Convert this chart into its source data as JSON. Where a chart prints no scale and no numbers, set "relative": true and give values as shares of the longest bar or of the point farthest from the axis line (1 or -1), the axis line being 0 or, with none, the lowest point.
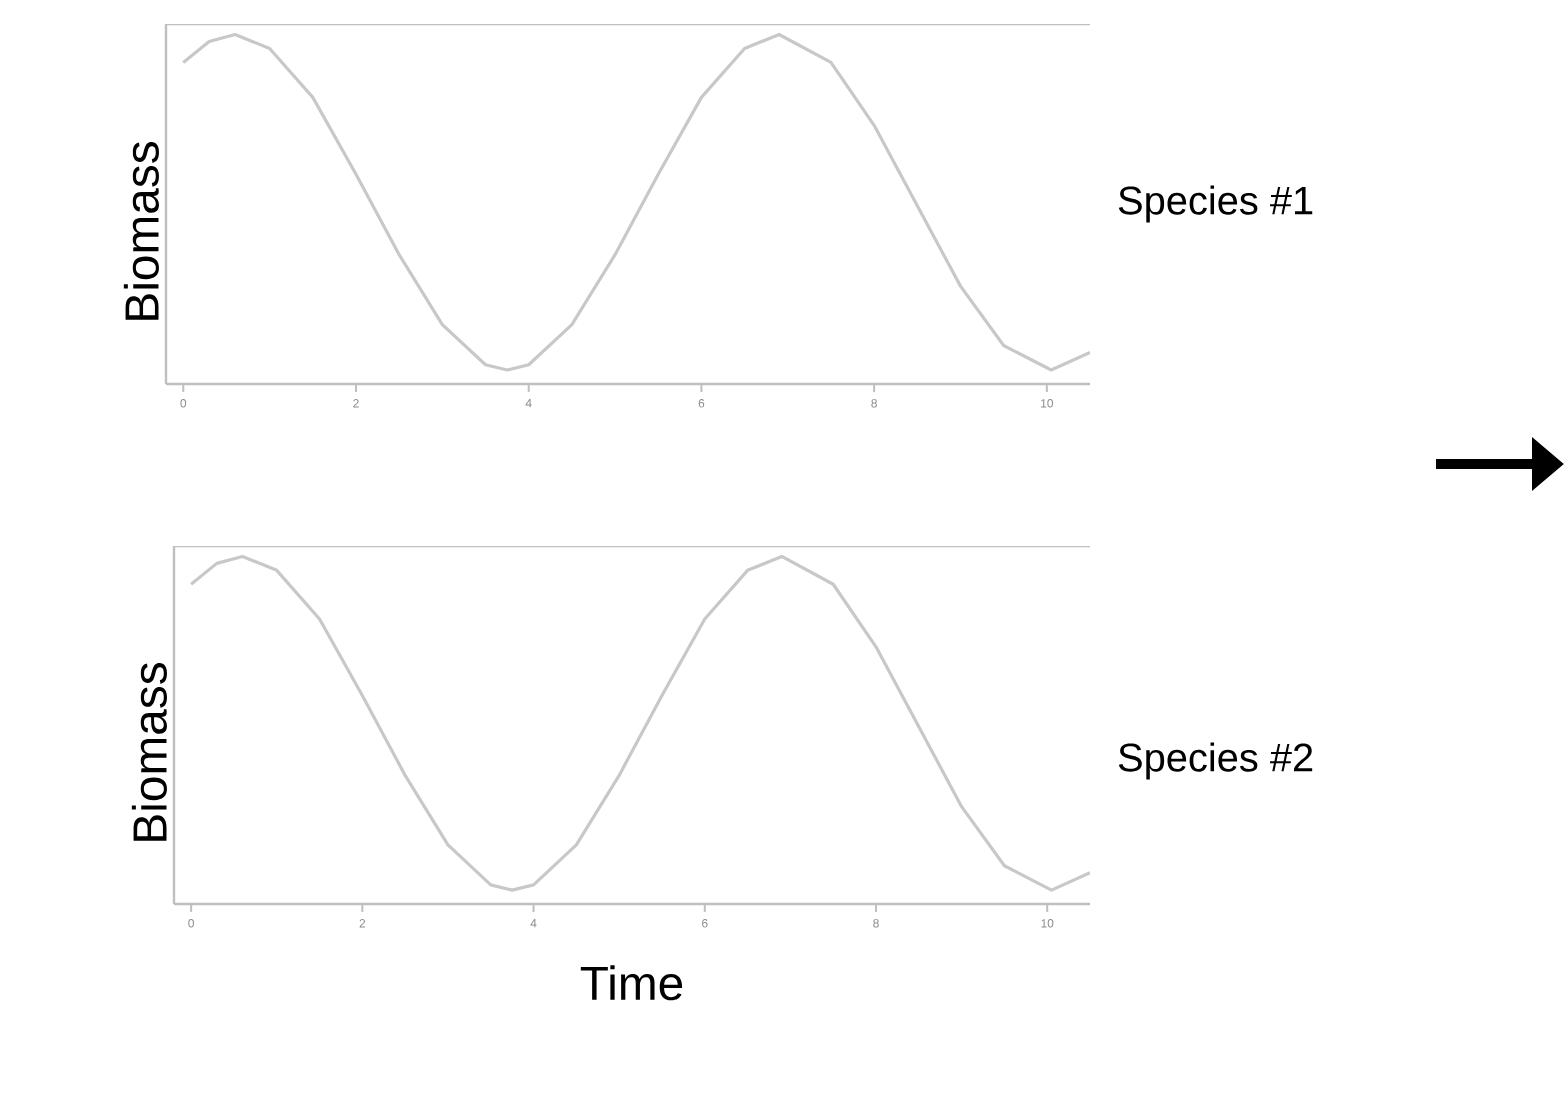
{
  "chart_data": [
    {
      "type": "line",
      "ylabel": "Biomass",
      "relative": true,
      "tick_labels": "x",
      "xlim": [
        -0.2,
        10.5
      ],
      "xticks": [
        0,
        2,
        4,
        6,
        8,
        10
      ],
      "x": [
        0,
        0.3,
        0.6,
        1.0,
        1.5,
        2.0,
        2.5,
        3.0,
        3.5,
        3.75,
        4.0,
        4.5,
        5.0,
        5.5,
        6.0,
        6.5,
        6.9,
        7.5,
        8.0,
        8.5,
        9.0,
        9.5,
        10.05,
        10.5
      ],
      "series": [
        {
          "name": "Species #1",
          "color": "#c8c8c8",
          "values": [
            0.92,
            0.98,
            1.0,
            0.96,
            0.82,
            0.6,
            0.37,
            0.17,
            0.055,
            0.04,
            0.055,
            0.17,
            0.37,
            0.6,
            0.82,
            0.96,
            1.0,
            0.92,
            0.74,
            0.51,
            0.28,
            0.11,
            0.04,
            0.09
          ]
        }
      ]
    },
    {
      "type": "line",
      "ylabel": "Biomass",
      "xlabel": "Time",
      "relative": true,
      "tick_labels": "x",
      "xlim": [
        -0.2,
        10.5
      ],
      "xticks": [
        0,
        2,
        4,
        6,
        8,
        10
      ],
      "x": [
        0,
        0.3,
        0.6,
        1.0,
        1.5,
        2.0,
        2.5,
        3.0,
        3.5,
        3.75,
        4.0,
        4.5,
        5.0,
        5.5,
        6.0,
        6.5,
        6.9,
        7.5,
        8.0,
        8.5,
        9.0,
        9.5,
        10.05,
        10.5
      ],
      "series": [
        {
          "name": "Species #2",
          "color": "#c8c8c8",
          "values": [
            0.92,
            0.98,
            1.0,
            0.96,
            0.82,
            0.6,
            0.37,
            0.17,
            0.055,
            0.04,
            0.055,
            0.17,
            0.37,
            0.6,
            0.82,
            0.96,
            1.0,
            0.92,
            0.74,
            0.51,
            0.28,
            0.11,
            0.04,
            0.09
          ]
        }
      ]
    }
  ]
}
